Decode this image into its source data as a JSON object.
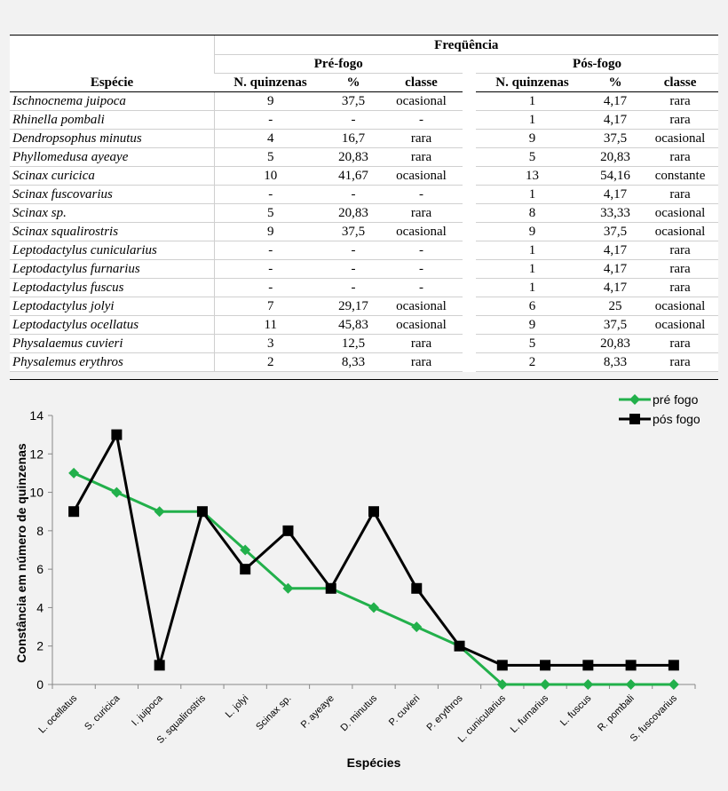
{
  "table": {
    "group_header": "Freqüência",
    "pre_header": "Pré-fogo",
    "pos_header": "Pós-fogo",
    "species_header": "Espécie",
    "columns": [
      "N. quinzenas",
      "%",
      "classe"
    ],
    "rows": [
      {
        "species": "Ischnocnema juipoca",
        "pre": [
          "9",
          "37,5",
          "ocasional"
        ],
        "pos": [
          "1",
          "4,17",
          "rara"
        ]
      },
      {
        "species": "Rhinella pombali",
        "pre": [
          "-",
          "-",
          "-"
        ],
        "pos": [
          "1",
          "4,17",
          "rara"
        ]
      },
      {
        "species": "Dendropsophus minutus",
        "pre": [
          "4",
          "16,7",
          "rara"
        ],
        "pos": [
          "9",
          "37,5",
          "ocasional"
        ]
      },
      {
        "species": "Phyllomedusa ayeaye",
        "pre": [
          "5",
          "20,83",
          "rara"
        ],
        "pos": [
          "5",
          "20,83",
          "rara"
        ]
      },
      {
        "species": "Scinax curicica",
        "pre": [
          "10",
          "41,67",
          "ocasional"
        ],
        "pos": [
          "13",
          "54,16",
          "constante"
        ]
      },
      {
        "species": "Scinax fuscovarius",
        "pre": [
          "-",
          "-",
          "-"
        ],
        "pos": [
          "1",
          "4,17",
          "rara"
        ]
      },
      {
        "species": "Scinax sp.",
        "pre": [
          "5",
          "20,83",
          "rara"
        ],
        "pos": [
          "8",
          "33,33",
          "ocasional"
        ]
      },
      {
        "species": "Scinax squalirostris",
        "pre": [
          "9",
          "37,5",
          "ocasional"
        ],
        "pos": [
          "9",
          "37,5",
          "ocasional"
        ]
      },
      {
        "species": "Leptodactylus cunicularius",
        "pre": [
          "-",
          "-",
          "-"
        ],
        "pos": [
          "1",
          "4,17",
          "rara"
        ]
      },
      {
        "species": "Leptodactylus furnarius",
        "pre": [
          "-",
          "-",
          "-"
        ],
        "pos": [
          "1",
          "4,17",
          "rara"
        ]
      },
      {
        "species": "Leptodactylus fuscus",
        "pre": [
          "-",
          "-",
          "-"
        ],
        "pos": [
          "1",
          "4,17",
          "rara"
        ]
      },
      {
        "species": "Leptodactylus jolyi",
        "pre": [
          "7",
          "29,17",
          "ocasional"
        ],
        "pos": [
          "6",
          "25",
          "ocasional"
        ]
      },
      {
        "species": "Leptodactylus ocellatus",
        "pre": [
          "11",
          "45,83",
          "ocasional"
        ],
        "pos": [
          "9",
          "37,5",
          "ocasional"
        ]
      },
      {
        "species": "Physalaemus cuvieri",
        "pre": [
          "3",
          "12,5",
          "rara"
        ],
        "pos": [
          "5",
          "20,83",
          "rara"
        ]
      },
      {
        "species": "Physalemus erythros",
        "pre": [
          "2",
          "8,33",
          "rara"
        ],
        "pos": [
          "2",
          "8,33",
          "rara"
        ]
      }
    ]
  },
  "chart_data": {
    "type": "line",
    "xlabel": "Espécies",
    "ylabel": "Constância em número de quinzenas",
    "ylim": [
      0,
      14
    ],
    "yticks": [
      0,
      2,
      4,
      6,
      8,
      10,
      12,
      14
    ],
    "categories": [
      "L. ocellatus",
      "S. curicica",
      "I. juipoca",
      "S. squalirostris",
      "L. jolyi",
      "Scinax sp.",
      "P. ayeaye",
      "D. minutus",
      "P. cuvieri",
      "P. erythros",
      "L. cunicularius",
      "L. furnarius",
      "L. fuscus",
      "R. pombali",
      "S. fuscovarius"
    ],
    "series": [
      {
        "name": "pré fogo",
        "color": "#22b04b",
        "marker": "diamond",
        "values": [
          11,
          10,
          9,
          9,
          7,
          5,
          5,
          4,
          3,
          2,
          0,
          0,
          0,
          0,
          0
        ]
      },
      {
        "name": "pós fogo",
        "color": "#000000",
        "marker": "square",
        "values": [
          9,
          13,
          1,
          9,
          6,
          8,
          5,
          9,
          5,
          2,
          1,
          1,
          1,
          1,
          1
        ]
      }
    ],
    "legend_position": "top-right"
  }
}
